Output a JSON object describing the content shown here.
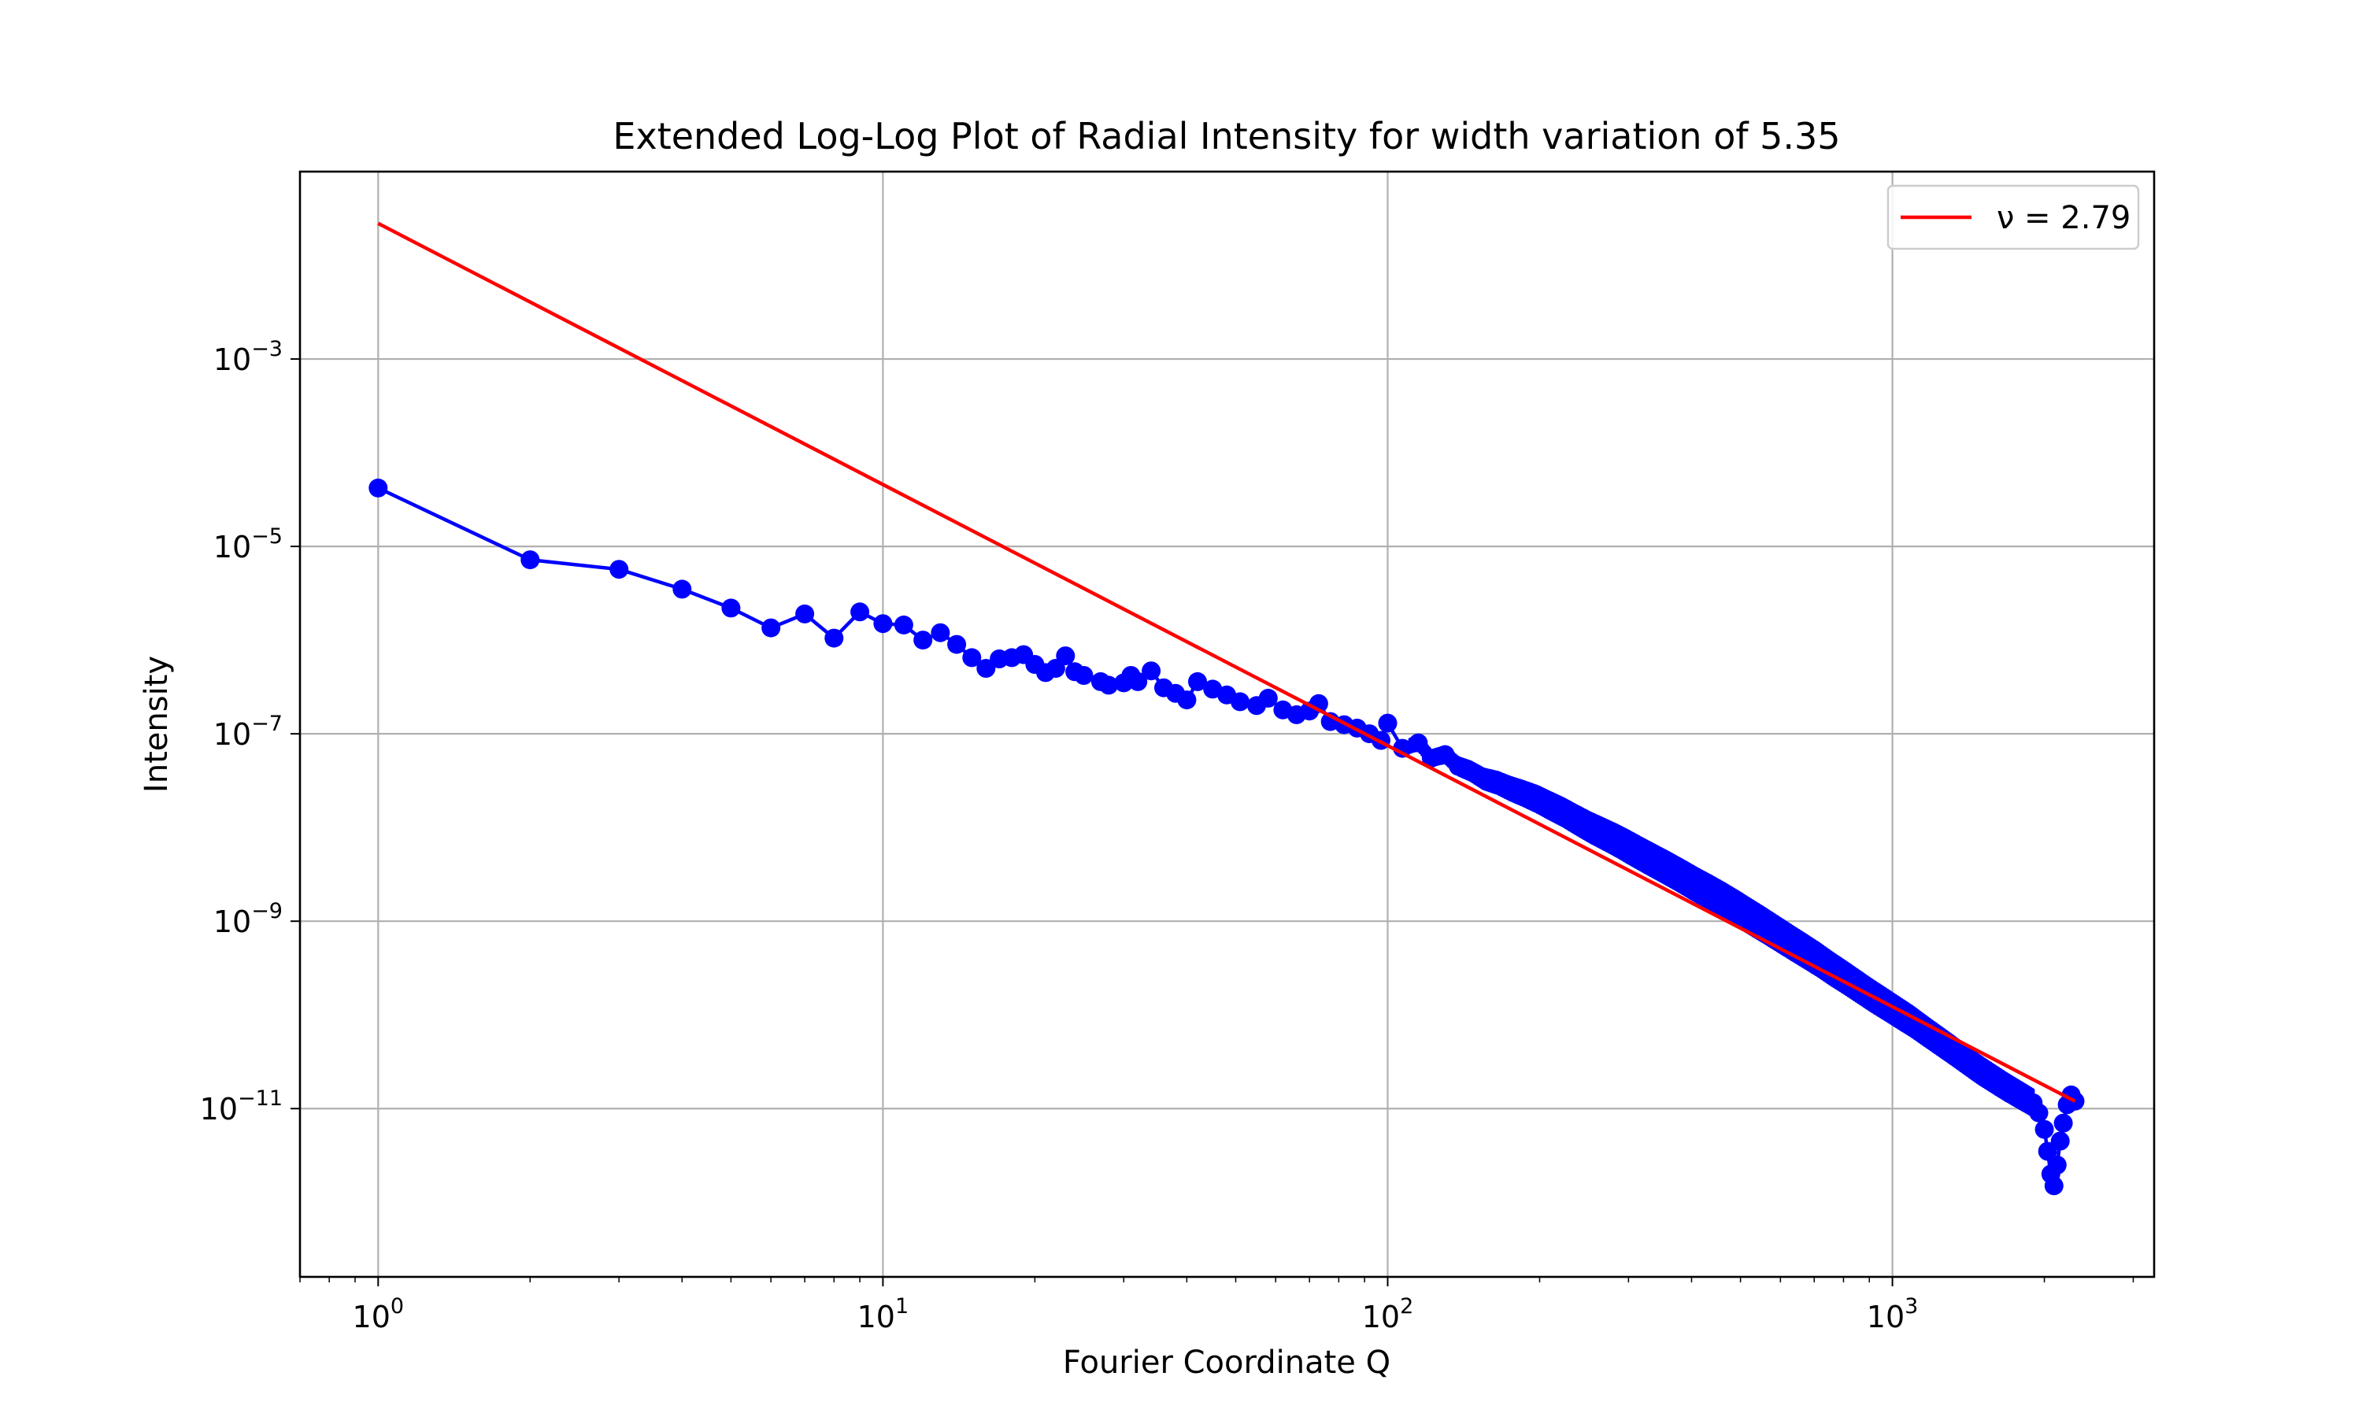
{
  "chart_data": {
    "type": "line",
    "title": "Extended Log-Log Plot of Radial Intensity for width variation of 5.35",
    "xlabel": "Fourier Coordinate Q",
    "ylabel": "Intensity",
    "xscale": "log",
    "yscale": "log",
    "xlim": [
      0.7,
      3300
    ],
    "ylim": [
      1.6e-13,
      0.1
    ],
    "grid": true,
    "legend_position": "upper-right",
    "x_ticks": [
      {
        "value": 1,
        "base": "10",
        "exp": "0"
      },
      {
        "value": 10,
        "base": "10",
        "exp": "1"
      },
      {
        "value": 100,
        "base": "10",
        "exp": "2"
      },
      {
        "value": 1000,
        "base": "10",
        "exp": "3"
      }
    ],
    "y_ticks": [
      {
        "value": 0.001,
        "base": "10",
        "exp": "−3"
      },
      {
        "value": 1e-05,
        "base": "10",
        "exp": "−5"
      },
      {
        "value": 1e-07,
        "base": "10",
        "exp": "−7"
      },
      {
        "value": 1e-09,
        "base": "10",
        "exp": "−9"
      },
      {
        "value": 1e-11,
        "base": "10",
        "exp": "−11"
      }
    ],
    "series": [
      {
        "style": "line-markers",
        "color": "#0000ff",
        "points": [
          [
            1,
            4.2e-05
          ],
          [
            2,
            7.2e-06
          ],
          [
            3,
            5.7e-06
          ],
          [
            4,
            3.5e-06
          ],
          [
            5,
            2.2e-06
          ],
          [
            6,
            1.35e-06
          ],
          [
            7,
            1.9e-06
          ],
          [
            8,
            1.05e-06
          ],
          [
            9,
            2e-06
          ],
          [
            10,
            1.5e-06
          ],
          [
            11,
            1.45e-06
          ],
          [
            12,
            1e-06
          ],
          [
            13,
            1.2e-06
          ],
          [
            14,
            9e-07
          ],
          [
            15,
            6.5e-07
          ],
          [
            16,
            5e-07
          ],
          [
            17,
            6.3e-07
          ],
          [
            18,
            6.5e-07
          ],
          [
            19,
            7e-07
          ],
          [
            20,
            5.5e-07
          ],
          [
            21,
            4.5e-07
          ],
          [
            22,
            5e-07
          ],
          [
            23,
            6.8e-07
          ],
          [
            24,
            4.6e-07
          ],
          [
            25,
            4.2e-07
          ],
          [
            27,
            3.6e-07
          ],
          [
            28,
            3.3e-07
          ],
          [
            30,
            3.5e-07
          ],
          [
            31,
            4.2e-07
          ],
          [
            32,
            3.6e-07
          ],
          [
            34,
            4.7e-07
          ],
          [
            36,
            3.1e-07
          ],
          [
            38,
            2.7e-07
          ],
          [
            40,
            2.3e-07
          ],
          [
            42,
            3.6e-07
          ],
          [
            45,
            3e-07
          ],
          [
            48,
            2.6e-07
          ],
          [
            51,
            2.2e-07
          ],
          [
            55,
            2e-07
          ],
          [
            58,
            2.4e-07
          ],
          [
            62,
            1.8e-07
          ],
          [
            66,
            1.6e-07
          ],
          [
            70,
            1.75e-07
          ],
          [
            73,
            2.1e-07
          ],
          [
            77,
            1.35e-07
          ],
          [
            82,
            1.25e-07
          ],
          [
            87,
            1.15e-07
          ],
          [
            92,
            1e-07
          ],
          [
            97,
            8.5e-08
          ],
          [
            100,
            1.3e-07
          ],
          [
            107,
            7e-08
          ],
          [
            115,
            8e-08
          ],
          [
            122,
            5.5e-08
          ],
          [
            130,
            6e-08
          ],
          [
            138,
            4.5e-08
          ],
          [
            146,
            4e-08
          ],
          [
            155,
            3.3e-08
          ],
          [
            165,
            3e-08
          ],
          [
            175,
            2.6e-08
          ],
          [
            186,
            2.3e-08
          ],
          [
            198,
            2e-08
          ],
          [
            210,
            1.7e-08
          ],
          [
            223,
            1.45e-08
          ],
          [
            237,
            1.2e-08
          ],
          [
            252,
            1e-08
          ],
          [
            268,
            8.5e-09
          ],
          [
            285,
            7.2e-09
          ],
          [
            303,
            6e-09
          ],
          [
            322,
            5e-09
          ],
          [
            342,
            4.2e-09
          ],
          [
            364,
            3.5e-09
          ],
          [
            387,
            2.9e-09
          ],
          [
            411,
            2.4e-09
          ],
          [
            437,
            2e-09
          ],
          [
            465,
            1.65e-09
          ],
          [
            494,
            1.35e-09
          ],
          [
            525,
            1.1e-09
          ],
          [
            558,
            9e-10
          ],
          [
            593,
            7.3e-10
          ],
          [
            631,
            5.9e-10
          ],
          [
            671,
            4.8e-10
          ],
          [
            713,
            3.9e-10
          ],
          [
            758,
            3.1e-10
          ],
          [
            806,
            2.5e-10
          ],
          [
            857,
            2e-10
          ],
          [
            911,
            1.6e-10
          ],
          [
            968,
            1.3e-10
          ],
          [
            1029,
            1.05e-10
          ],
          [
            1094,
            8.5e-11
          ],
          [
            1163,
            6.7e-11
          ],
          [
            1237,
            5.3e-11
          ],
          [
            1315,
            4.2e-11
          ],
          [
            1398,
            3.3e-11
          ],
          [
            1486,
            2.6e-11
          ],
          [
            1580,
            2.1e-11
          ],
          [
            1680,
            1.7e-11
          ],
          [
            1786,
            1.4e-11
          ],
          [
            1900,
            1.15e-11
          ],
          [
            1950,
            9e-12
          ],
          [
            2000,
            6e-12
          ],
          [
            2030,
            3.5e-12
          ],
          [
            2060,
            2e-12
          ],
          [
            2090,
            1.5e-12
          ],
          [
            2120,
            2.5e-12
          ],
          [
            2150,
            4.5e-12
          ],
          [
            2180,
            7e-12
          ],
          [
            2220,
            1.1e-11
          ],
          [
            2260,
            1.4e-11
          ],
          [
            2300,
            1.2e-11
          ]
        ],
        "band": [
          [
            110,
            1.15
          ],
          [
            200,
            1.35
          ],
          [
            300,
            1.45
          ],
          [
            500,
            1.5
          ],
          [
            800,
            1.45
          ],
          [
            1200,
            1.4
          ],
          [
            1900,
            1.35
          ]
        ]
      },
      {
        "name": "ν = 2.79",
        "style": "line",
        "color": "#ff0000",
        "points": [
          [
            1,
            0.028
          ],
          [
            2300,
            1.2e-11
          ]
        ]
      }
    ]
  }
}
